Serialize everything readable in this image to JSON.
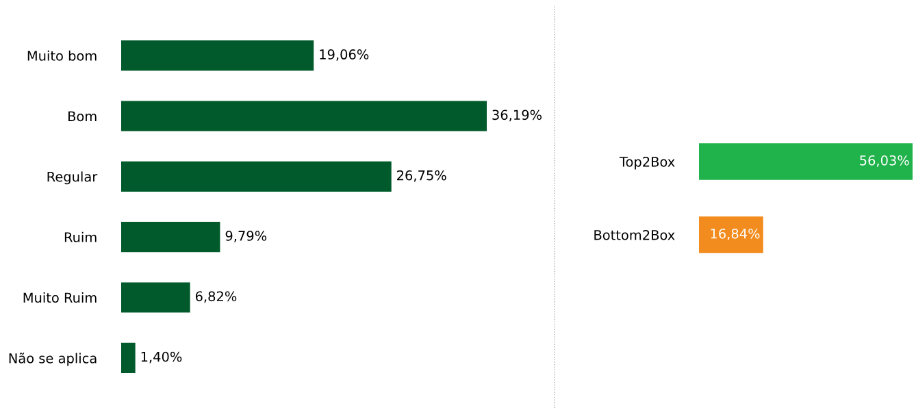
{
  "chart_data": [
    {
      "type": "bar",
      "orientation": "horizontal",
      "categories": [
        "Muito bom",
        "Bom",
        "Regular",
        "Ruim",
        "Muito Ruim",
        "Não se aplica"
      ],
      "values": [
        19.06,
        36.19,
        26.75,
        9.79,
        6.82,
        1.4
      ],
      "colors": [
        "#005a2b",
        "#005a2b",
        "#005a2b",
        "#005a2b",
        "#005a2b",
        "#005a2b"
      ],
      "value_labels": [
        "19,06%",
        "36,19%",
        "26,75%",
        "9,79%",
        "6,82%",
        "1,40%"
      ],
      "tick_labels": "y",
      "grid": false,
      "legend": false
    },
    {
      "type": "bar",
      "orientation": "horizontal",
      "categories": [
        "Top2Box",
        "Bottom2Box"
      ],
      "values": [
        56.03,
        16.84
      ],
      "colors": [
        "#21b34b",
        "#f28c1e"
      ],
      "value_labels": [
        "56,03%",
        "16,84%"
      ],
      "tick_labels": "y",
      "grid": false,
      "legend": false
    }
  ]
}
